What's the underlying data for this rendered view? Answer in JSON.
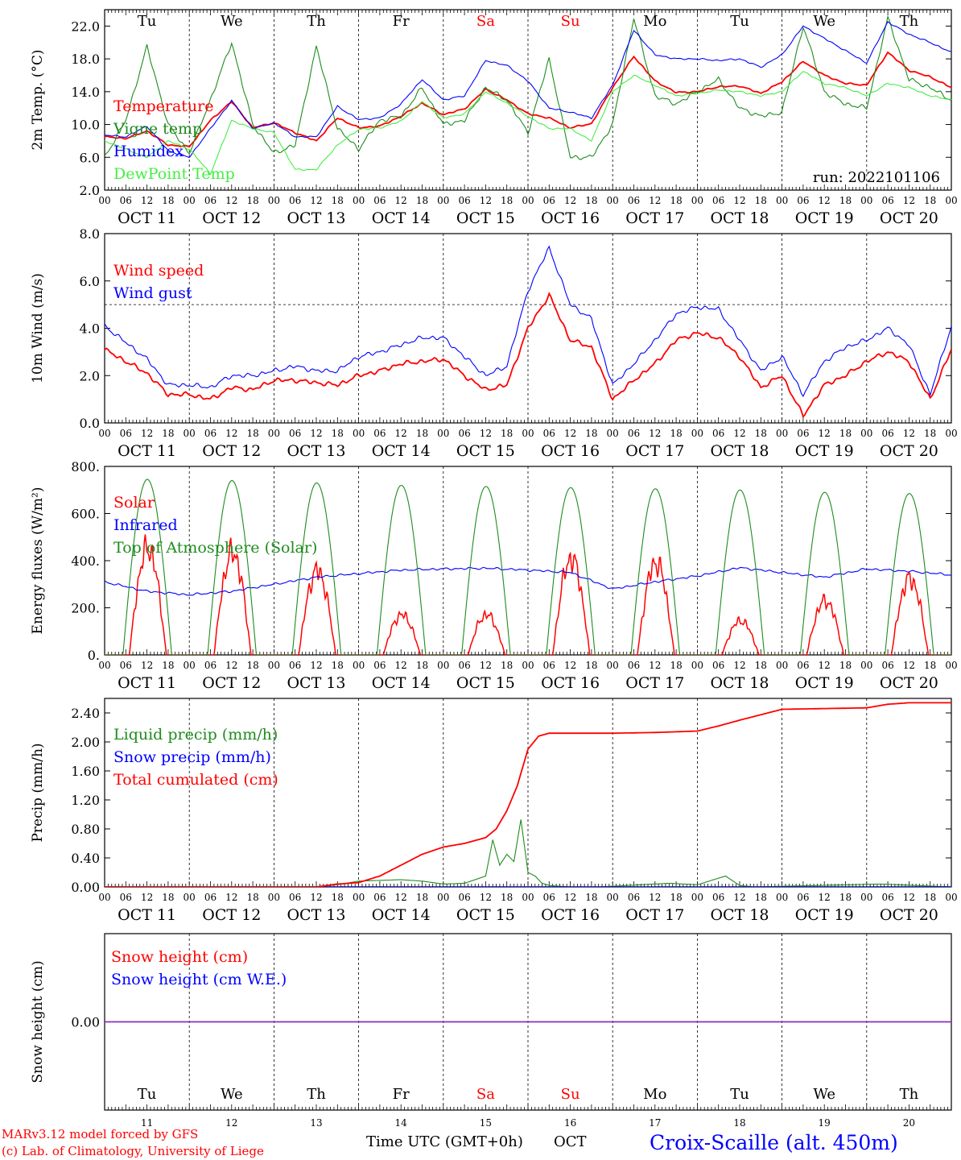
{
  "colors": {
    "red": "#ff0000",
    "dark_green": "#1e8c1e",
    "light_green": "#44ee44",
    "blue": "#0000ff",
    "purple": "#8b2fbf"
  },
  "common": {
    "hour_ticks": [
      "00",
      "06",
      "12",
      "18"
    ],
    "final_tick": "00",
    "days": [
      "OCT 11",
      "OCT 12",
      "OCT 13",
      "OCT 14",
      "OCT 15",
      "OCT 16",
      "OCT 17",
      "OCT 18",
      "OCT 19",
      "OCT 20"
    ],
    "weekdays": [
      "Tu",
      "We",
      "Th",
      "Fr",
      "Sa",
      "Su",
      "Mo",
      "Tu",
      "We",
      "Th"
    ],
    "weekend_indices": [
      4,
      5
    ],
    "day_numbers": [
      "11",
      "12",
      "13",
      "14",
      "15",
      "16",
      "17",
      "18",
      "19",
      "20"
    ]
  },
  "footer": {
    "model": "MARv3.12 model forced by GFS",
    "lab": "(c) Lab. of Climatology, University of Liege",
    "xlabel": "Time UTC (GMT+0h)",
    "month": "OCT",
    "station": "Croix-Scaille (alt. 450m)"
  },
  "chart_data": [
    {
      "type": "line",
      "ylabel": "2m Temp. (°C)",
      "ylim": [
        2,
        24
      ],
      "ytick_labels": [
        "2.0",
        "6.0",
        "10.0",
        "14.0",
        "18.0",
        "22.0"
      ],
      "yticks": [
        2,
        6,
        10,
        14,
        18,
        22
      ],
      "run_label": "run: 2022101106",
      "x_unit": "hours since OCT 11 00 UTC",
      "series": [
        {
          "name": "Temperature",
          "color": "red",
          "x": [
            0,
            6,
            12,
            18,
            24,
            30,
            36,
            42,
            48,
            54,
            60,
            66,
            72,
            78,
            84,
            90,
            96,
            102,
            108,
            114,
            120,
            126,
            132,
            138,
            144,
            150,
            156,
            162,
            168,
            174,
            180,
            186,
            192,
            198,
            204,
            210,
            216,
            222,
            228,
            234,
            240
          ],
          "y": [
            8.5,
            8.3,
            9.2,
            7.5,
            7.3,
            10.5,
            12.8,
            9.6,
            10.2,
            9.0,
            8.0,
            10.8,
            9.6,
            9.8,
            11.0,
            12.6,
            11.2,
            11.9,
            14.3,
            13.0,
            11.3,
            10.8,
            9.6,
            10.1,
            14.5,
            18.3,
            15.3,
            13.9,
            14.0,
            14.6,
            14.7,
            13.8,
            15.2,
            17.7,
            16.0,
            15.0,
            14.8,
            18.8,
            16.6,
            15.8,
            14.5
          ]
        },
        {
          "name": "Vigne temp",
          "color": "dark_green",
          "x": [
            0,
            6,
            12,
            18,
            24,
            30,
            36,
            42,
            48,
            54,
            60,
            66,
            72,
            78,
            84,
            90,
            96,
            102,
            108,
            114,
            120,
            126,
            132,
            138,
            144,
            150,
            156,
            162,
            168,
            174,
            180,
            186,
            192,
            198,
            204,
            210,
            216,
            222,
            228,
            234,
            240
          ],
          "y": [
            6.0,
            10.5,
            19.5,
            10.0,
            6.5,
            13.0,
            20.0,
            10.0,
            6.5,
            7.5,
            19.5,
            9.5,
            7.0,
            10.5,
            11.0,
            14.5,
            10.0,
            10.5,
            14.5,
            13.0,
            9.0,
            18.0,
            6.0,
            6.0,
            10.0,
            23.0,
            13.5,
            12.5,
            14.0,
            15.5,
            12.0,
            11.0,
            11.5,
            22.0,
            14.0,
            12.5,
            12.0,
            23.0,
            15.5,
            14.5,
            13.0
          ]
        },
        {
          "name": "Humidex",
          "color": "blue",
          "x": [
            0,
            6,
            12,
            18,
            24,
            30,
            36,
            42,
            48,
            54,
            60,
            66,
            72,
            78,
            84,
            90,
            96,
            102,
            108,
            114,
            120,
            126,
            132,
            138,
            144,
            150,
            156,
            162,
            168,
            174,
            180,
            186,
            192,
            198,
            204,
            210,
            216,
            222,
            228,
            234,
            240
          ],
          "y": [
            8.7,
            8.5,
            9.8,
            6.8,
            6.0,
            9.5,
            12.9,
            9.5,
            10.2,
            8.5,
            8.5,
            12.2,
            10.6,
            10.8,
            12.5,
            15.5,
            13.0,
            13.5,
            17.8,
            17.2,
            15.3,
            12.0,
            11.5,
            10.8,
            14.8,
            21.5,
            18.5,
            18.0,
            18.0,
            17.8,
            18.0,
            17.0,
            18.5,
            22.0,
            20.5,
            19.0,
            17.5,
            22.5,
            21.0,
            20.0,
            18.8
          ]
        },
        {
          "name": "DewPoint Temp",
          "color": "light_green",
          "x": [
            0,
            6,
            12,
            18,
            24,
            30,
            36,
            42,
            48,
            54,
            60,
            66,
            72,
            78,
            84,
            90,
            96,
            102,
            108,
            114,
            120,
            126,
            132,
            138,
            144,
            150,
            156,
            162,
            168,
            174,
            180,
            186,
            192,
            198,
            204,
            210,
            216,
            222,
            228,
            234,
            240
          ],
          "y": [
            8.0,
            7.0,
            6.0,
            8.0,
            7.0,
            4.0,
            10.5,
            9.5,
            9.0,
            4.5,
            4.5,
            7.5,
            9.4,
            9.6,
            10.4,
            12.8,
            10.8,
            11.3,
            14.0,
            12.6,
            11.0,
            9.5,
            9.5,
            8.0,
            14.0,
            16.0,
            14.8,
            13.5,
            13.8,
            14.2,
            14.0,
            13.5,
            14.0,
            16.5,
            15.0,
            14.5,
            13.5,
            15.0,
            14.5,
            13.5,
            13.0
          ]
        }
      ]
    },
    {
      "type": "line",
      "ylabel": "10m Wind (m/s)",
      "ylim": [
        0,
        8
      ],
      "ytick_labels": [
        "0.0",
        "2.0",
        "4.0",
        "6.0",
        "8.0"
      ],
      "yticks": [
        0,
        2,
        4,
        6,
        8
      ],
      "reference_line": 5,
      "x_unit": "hours since OCT 11 00 UTC",
      "series": [
        {
          "name": "Wind speed",
          "color": "red",
          "x": [
            0,
            6,
            12,
            18,
            24,
            30,
            36,
            42,
            48,
            54,
            60,
            66,
            72,
            78,
            84,
            90,
            96,
            102,
            108,
            114,
            120,
            126,
            132,
            138,
            144,
            150,
            156,
            162,
            168,
            174,
            180,
            186,
            192,
            198,
            204,
            210,
            216,
            222,
            228,
            234,
            240
          ],
          "y": [
            3.1,
            2.6,
            2.1,
            1.2,
            1.2,
            1.0,
            1.5,
            1.4,
            1.8,
            1.8,
            1.7,
            1.6,
            2.0,
            2.2,
            2.5,
            2.6,
            2.7,
            2.0,
            1.4,
            1.6,
            4.0,
            5.4,
            3.5,
            3.2,
            1.0,
            1.8,
            2.5,
            3.5,
            3.8,
            3.6,
            2.8,
            1.5,
            2.0,
            0.3,
            1.6,
            2.0,
            2.6,
            3.0,
            2.6,
            1.0,
            3.1
          ]
        },
        {
          "name": "Wind gust",
          "color": "blue",
          "x": [
            0,
            6,
            12,
            18,
            24,
            30,
            36,
            42,
            48,
            54,
            60,
            66,
            72,
            78,
            84,
            90,
            96,
            102,
            108,
            114,
            120,
            126,
            132,
            138,
            144,
            150,
            156,
            162,
            168,
            174,
            180,
            186,
            192,
            198,
            204,
            210,
            216,
            222,
            228,
            234,
            240
          ],
          "y": [
            4.1,
            3.4,
            2.7,
            1.6,
            1.6,
            1.5,
            2.0,
            2.0,
            2.2,
            2.4,
            2.2,
            2.2,
            2.8,
            3.0,
            3.3,
            3.6,
            3.6,
            2.8,
            2.0,
            2.4,
            5.6,
            7.4,
            5.0,
            4.4,
            1.6,
            2.5,
            3.5,
            4.6,
            4.9,
            4.8,
            3.5,
            2.2,
            2.8,
            1.2,
            2.6,
            3.2,
            3.5,
            4.0,
            3.3,
            1.2,
            4.1
          ]
        }
      ]
    },
    {
      "type": "line",
      "ylabel": "Energy fluxes (W/m²)",
      "ylim": [
        0,
        800
      ],
      "ytick_labels": [
        "0.",
        "200.",
        "400.",
        "600.",
        "800."
      ],
      "yticks": [
        0,
        200,
        400,
        600,
        800
      ],
      "x_unit": "hours since OCT 11 00 UTC",
      "series": [
        {
          "name": "Solar",
          "color": "red",
          "daily_peaks": [
            530,
            510,
            420,
            200,
            200,
            480,
            460,
            170,
            270,
            380
          ]
        },
        {
          "name": "Infrared",
          "color": "blue",
          "x": [
            0,
            12,
            24,
            36,
            48,
            60,
            72,
            84,
            96,
            108,
            120,
            132,
            144,
            156,
            168,
            180,
            192,
            204,
            216,
            228,
            240
          ],
          "y": [
            310,
            270,
            255,
            270,
            300,
            330,
            345,
            360,
            365,
            368,
            360,
            350,
            280,
            310,
            335,
            370,
            350,
            330,
            365,
            355,
            340
          ]
        },
        {
          "name": "Top of Atmosphere (Solar)",
          "color": "dark_green",
          "daily_peaks": [
            745,
            740,
            730,
            720,
            715,
            710,
            705,
            700,
            690,
            685
          ]
        }
      ]
    },
    {
      "type": "line",
      "ylabel": "Precip (mm/h)",
      "ylim": [
        0,
        2.6
      ],
      "ytick_labels": [
        "0.00",
        "0.40",
        "0.80",
        "1.20",
        "1.60",
        "2.00",
        "2.40"
      ],
      "yticks": [
        0,
        0.4,
        0.8,
        1.2,
        1.6,
        2.0,
        2.4
      ],
      "x_unit": "hours since OCT 11 00 UTC",
      "series": [
        {
          "name": "Liquid precip (mm/h)",
          "color": "dark_green",
          "x": [
            0,
            60,
            66,
            72,
            84,
            90,
            96,
            102,
            108,
            110,
            112,
            114,
            116,
            118,
            120,
            122,
            124,
            126,
            132,
            140,
            160,
            168,
            176,
            180,
            184,
            220,
            240
          ],
          "y": [
            0,
            0,
            0.03,
            0.08,
            0.1,
            0.08,
            0.04,
            0.05,
            0.15,
            0.65,
            0.3,
            0.45,
            0.35,
            0.93,
            0.2,
            0.15,
            0.05,
            0.02,
            0,
            0,
            0.05,
            0.03,
            0.15,
            0.02,
            0,
            0.04,
            0
          ]
        },
        {
          "name": "Snow precip (mm/h)",
          "color": "blue",
          "x": [
            0,
            240
          ],
          "y": [
            0,
            0
          ]
        },
        {
          "name": "Total cumulated (cm)",
          "color": "red",
          "x": [
            0,
            60,
            66,
            72,
            78,
            84,
            90,
            96,
            102,
            108,
            111,
            114,
            117,
            120,
            123,
            126,
            132,
            144,
            156,
            168,
            174,
            180,
            192,
            204,
            216,
            222,
            228,
            240
          ],
          "y": [
            0,
            0,
            0.04,
            0.06,
            0.15,
            0.3,
            0.45,
            0.55,
            0.6,
            0.68,
            0.8,
            1.05,
            1.4,
            1.9,
            2.08,
            2.12,
            2.12,
            2.12,
            2.13,
            2.15,
            2.22,
            2.3,
            2.45,
            2.46,
            2.47,
            2.52,
            2.54,
            2.54
          ]
        }
      ]
    },
    {
      "type": "line",
      "ylabel": "Snow height (cm)",
      "ylim": [
        -1,
        1
      ],
      "ytick_labels": [
        "0.00"
      ],
      "yticks": [
        0
      ],
      "x_unit": "hours since OCT 11 00 UTC",
      "series": [
        {
          "name": "Snow height (cm)",
          "color": "red",
          "x": [
            0,
            240
          ],
          "y": [
            0,
            0
          ]
        },
        {
          "name": "Snow height (cm W.E.)",
          "color": "blue",
          "x": [
            0,
            240
          ],
          "y": [
            0,
            0
          ]
        }
      ]
    }
  ]
}
